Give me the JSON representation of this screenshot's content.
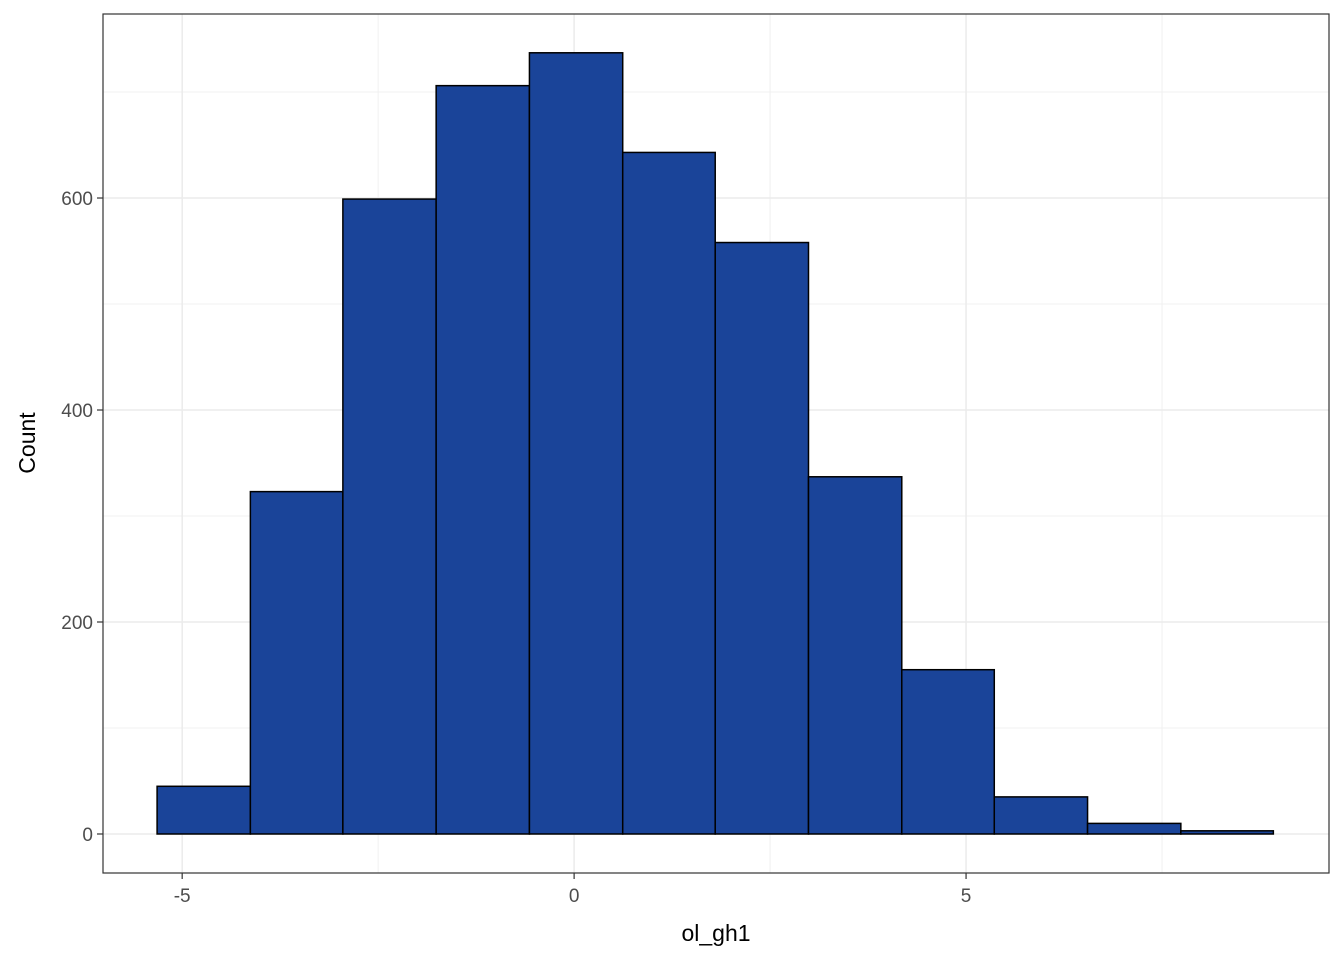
{
  "chart_data": {
    "type": "histogram",
    "xlabel": "ol_gh1",
    "ylabel": "Count",
    "bins": [
      -5.32,
      -4.13,
      -2.95,
      -1.76,
      -0.57,
      0.62,
      1.8,
      2.99,
      4.18,
      5.36,
      6.55,
      7.74,
      8.92
    ],
    "values": [
      45,
      323,
      599,
      706,
      737,
      643,
      558,
      337,
      155,
      35,
      10,
      3
    ],
    "color": "#1a4499",
    "edgecolor": "#000000",
    "xlim": [
      -6.01,
      9.63
    ],
    "xticks": [
      -5,
      0,
      5
    ],
    "ylim": [
      -36.8,
      773.6
    ],
    "yticks": [
      0,
      200,
      400,
      600
    ],
    "grid": true
  }
}
